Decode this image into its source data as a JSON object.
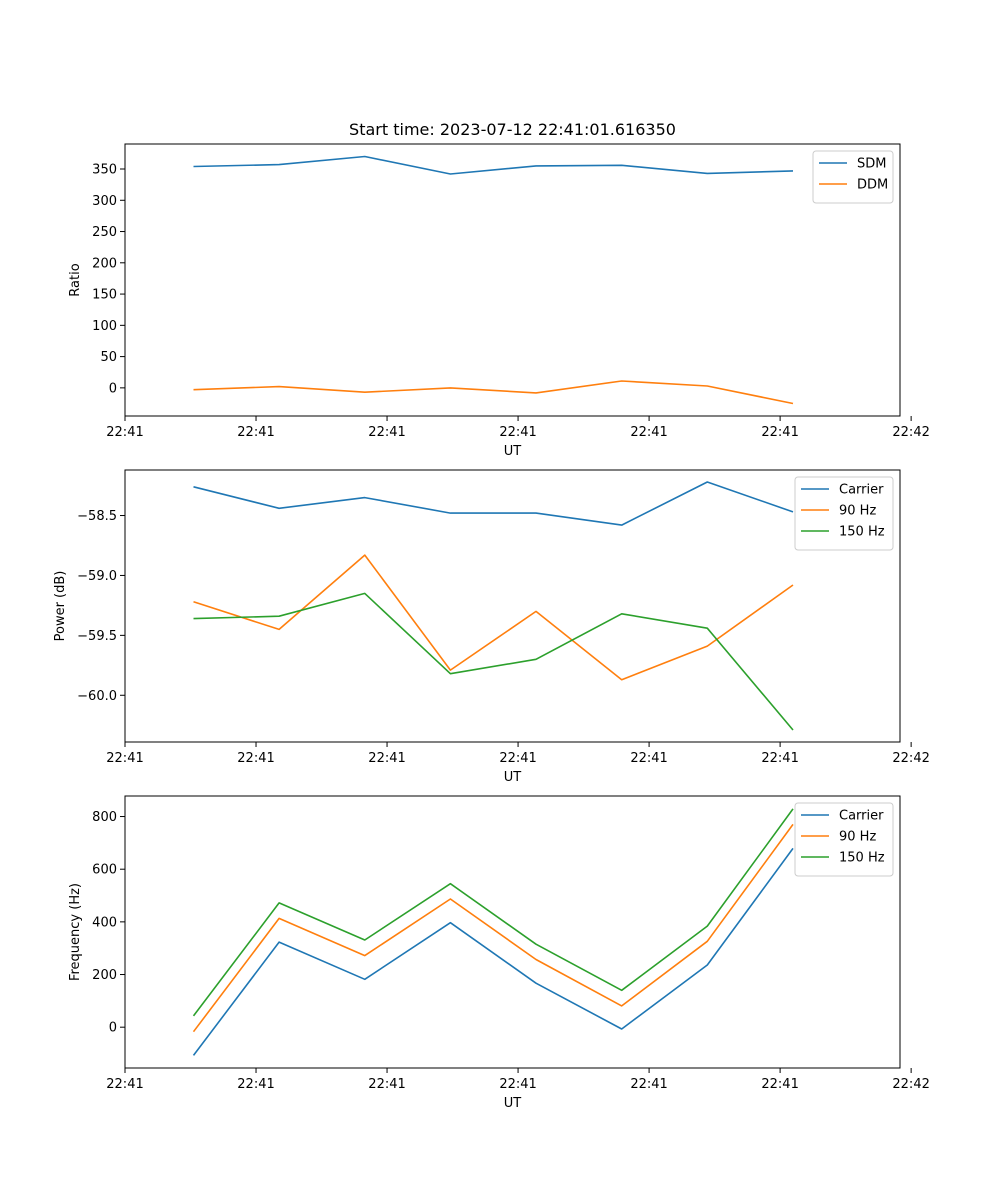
{
  "chart_data": [
    {
      "type": "line",
      "title": "Start time: 2023-07-12 22:41:01.616350",
      "xlabel": "UT",
      "ylabel": "Ratio",
      "x": [
        1,
        2,
        3,
        4,
        5,
        6,
        7,
        8
      ],
      "xlim": [
        0.2,
        9.25
      ],
      "xticks": [
        0.2,
        1.73,
        3.26,
        4.79,
        6.32,
        7.85,
        9.38
      ],
      "xticklabels": [
        "22:41",
        "22:41",
        "22:41",
        "22:41",
        "22:41",
        "22:41",
        "22:42"
      ],
      "ylim": [
        -45,
        390
      ],
      "yticks": [
        0,
        50,
        100,
        150,
        200,
        250,
        300,
        350
      ],
      "yticklabels": [
        "0",
        "50",
        "100",
        "150",
        "200",
        "250",
        "300",
        "350"
      ],
      "legend_position": "top-right",
      "series": [
        {
          "name": "SDM",
          "color": "#1f77b4",
          "values": [
            354,
            357,
            370,
            342,
            355,
            356,
            343,
            347
          ]
        },
        {
          "name": "DDM",
          "color": "#ff7f0e",
          "values": [
            -3,
            2,
            -7,
            0,
            -8,
            11,
            3,
            -25
          ]
        }
      ]
    },
    {
      "type": "line",
      "title": "",
      "xlabel": "UT",
      "ylabel": "Power (dB)",
      "x": [
        1,
        2,
        3,
        4,
        5,
        6,
        7,
        8
      ],
      "xlim": [
        0.2,
        9.25
      ],
      "xticks": [
        0.2,
        1.73,
        3.26,
        4.79,
        6.32,
        7.85,
        9.38
      ],
      "xticklabels": [
        "22:41",
        "22:41",
        "22:41",
        "22:41",
        "22:41",
        "22:41",
        "22:42"
      ],
      "ylim": [
        -60.39,
        -58.12
      ],
      "yticks": [
        -60.0,
        -59.5,
        -59.0,
        -58.5
      ],
      "yticklabels": [
        "−60.0",
        "−59.5",
        "−59.0",
        "−58.5"
      ],
      "legend_position": "top-right",
      "series": [
        {
          "name": "Carrier",
          "color": "#1f77b4",
          "values": [
            -58.26,
            -58.44,
            -58.35,
            -58.48,
            -58.48,
            -58.58,
            -58.22,
            -58.47
          ]
        },
        {
          "name": "90 Hz",
          "color": "#ff7f0e",
          "values": [
            -59.22,
            -59.45,
            -58.83,
            -59.79,
            -59.3,
            -59.87,
            -59.59,
            -59.08
          ]
        },
        {
          "name": "150 Hz",
          "color": "#2ca02c",
          "values": [
            -59.36,
            -59.34,
            -59.15,
            -59.82,
            -59.7,
            -59.32,
            -59.44,
            -60.29
          ]
        }
      ]
    },
    {
      "type": "line",
      "title": "",
      "xlabel": "UT",
      "ylabel": "Frequency (Hz)",
      "x": [
        1,
        2,
        3,
        4,
        5,
        6,
        7,
        8
      ],
      "xlim": [
        0.2,
        9.25
      ],
      "xticks": [
        0.2,
        1.73,
        3.26,
        4.79,
        6.32,
        7.85,
        9.38
      ],
      "xticklabels": [
        "22:41",
        "22:41",
        "22:41",
        "22:41",
        "22:41",
        "22:41",
        "22:42"
      ],
      "ylim": [
        -155,
        878
      ],
      "yticks": [
        0,
        200,
        400,
        600,
        800
      ],
      "yticklabels": [
        "0",
        "200",
        "400",
        "600",
        "800"
      ],
      "legend_position": "top-right",
      "series": [
        {
          "name": "Carrier",
          "color": "#1f77b4",
          "values": [
            -107,
            323,
            182,
            397,
            167,
            -7,
            236,
            679
          ]
        },
        {
          "name": "90 Hz",
          "color": "#ff7f0e",
          "values": [
            -17,
            413,
            272,
            487,
            257,
            81,
            326,
            770
          ]
        },
        {
          "name": "150 Hz",
          "color": "#2ca02c",
          "values": [
            43,
            472,
            331,
            545,
            315,
            140,
            384,
            829
          ]
        }
      ]
    }
  ]
}
